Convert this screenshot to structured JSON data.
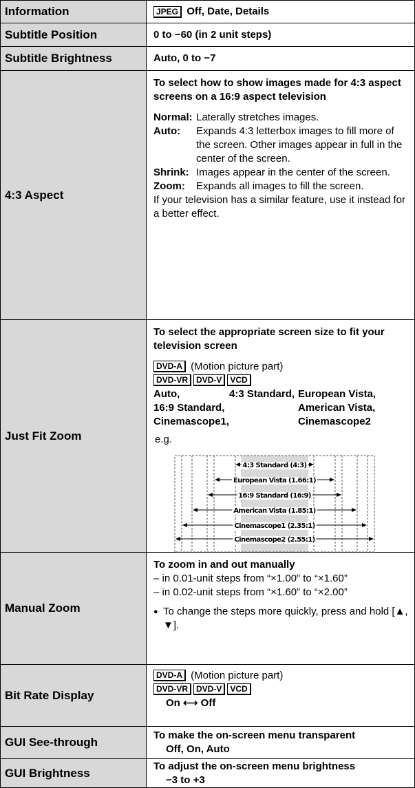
{
  "table": {
    "rows": [
      {
        "label": "Information",
        "key": "JPEG",
        "text": "Off, Date, Details"
      },
      {
        "label": "Subtitle Position",
        "text": "0 to −60 (in 2 unit steps)"
      },
      {
        "label": "Subtitle Brightness",
        "text": "Auto, 0 to −7"
      },
      {
        "label": "4:3 Aspect",
        "intro": "To select how to show images made for 4:3 aspect screens on a 16:9 aspect television",
        "options": [
          {
            "term": "Normal:",
            "desc": "Laterally stretches images."
          },
          {
            "term": "Auto:",
            "desc": "Expands 4:3 letterbox images to fill more of the screen. Other images appear in full in the center of the screen."
          },
          {
            "term": "Shrink:",
            "desc": "Images appear in the center of the screen."
          },
          {
            "term": "Zoom:",
            "desc": "Expands all images to fill the screen."
          }
        ],
        "note": "If your television has a similar feature, use it instead for a better effect."
      },
      {
        "label": "Just Fit Zoom",
        "intro": "To select the appropriate screen size to fit your television screen",
        "keys1": [
          "DVD-A"
        ],
        "keys1_text": "(Motion picture part)",
        "keys2": [
          "DVD-VR",
          "DVD-V",
          "VCD"
        ],
        "modes": [
          "Auto,",
          "4:3 Standard,",
          "European Vista,",
          "16:9 Standard,",
          "American Vista,",
          "Cinemascope1,",
          "Cinemascope2"
        ],
        "example": "e.g.",
        "diagram": [
          "4:3 Standard (4:3)",
          "European Vista (1.66:1)",
          "16:9 Standard (16:9)",
          "American Vista (1.85:1)",
          "Cinemascope1 (2.35:1)",
          "Cinemascope2 (2.55:1)"
        ]
      },
      {
        "label": "Manual Zoom",
        "intro": "To zoom in and out manually",
        "lines": [
          "– in 0.01-unit steps from “×1.00” to “×1.60”",
          "– in 0.02-unit steps from “×1.60” to “×2.00”"
        ],
        "bullet": "To change the steps more quickly, press and hold [▲, ▼]."
      },
      {
        "label": "Bit Rate Display",
        "keys1": [
          "DVD-A"
        ],
        "keys1_text": "(Motion picture part)",
        "keys2": [
          "DVD-VR",
          "DVD-V",
          "VCD"
        ],
        "setting": "On ⟷ Off"
      },
      {
        "label": "GUI See-through",
        "intro": "To make the on-screen menu transparent",
        "setting": "Off, On, Auto"
      },
      {
        "label": "GUI Brightness",
        "intro": "To adjust the on-screen menu brightness",
        "setting": "−3 to +3"
      }
    ]
  }
}
